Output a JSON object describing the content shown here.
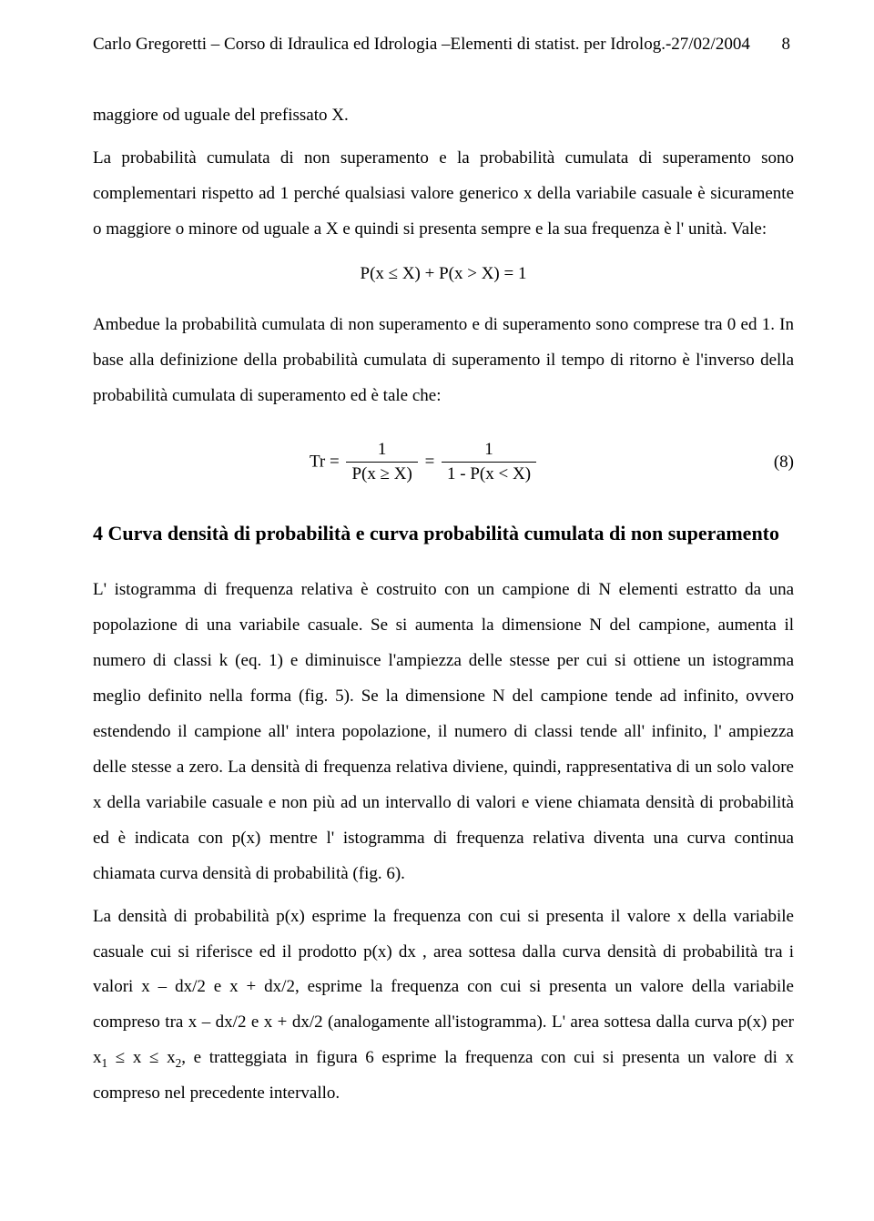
{
  "header": {
    "text": "Carlo Gregoretti – Corso di Idraulica ed Idrologia –Elementi di statist. per Idrolog.-27/02/2004",
    "page_number": "8"
  },
  "para1": "maggiore od uguale del prefissato X.",
  "para2": "La probabilità cumulata di non superamento e la probabilità cumulata di superamento sono complementari rispetto ad 1 perché qualsiasi valore generico x della variabile casuale è sicuramente o maggiore o minore od uguale a X e quindi si presenta sempre e la sua frequenza è l' unità. Vale:",
  "eq1": "P(x ≤ X) + P(x > X) = 1",
  "para3": "Ambedue la probabilità cumulata di non superamento e di superamento sono comprese tra  0 ed 1. In base alla definizione della probabilità cumulata di superamento il tempo di ritorno è l'inverso della probabilità cumulata di superamento ed è tale che:",
  "eq2": {
    "lhs": "Tr =",
    "frac1_num": "1",
    "frac1_den": "P(x ≥ X)",
    "mid": "=",
    "frac2_num": "1",
    "frac2_den": "1 - P(x < X)",
    "label": "(8)"
  },
  "section_title": "4 Curva densità di probabilità e curva probabilità cumulata di non superamento",
  "para4_pre": "L' istogramma di frequenza relativa è costruito con un campione di N elementi estratto da una popolazione di una variabile casuale. Se si aumenta la dimensione N del campione, aumenta il numero di classi k (eq. 1) e diminuisce l'ampiezza delle stesse per cui si ottiene un istogramma meglio definito nella forma (fig. 5). Se la dimensione N del campione tende ad infinito, ovvero estendendo il campione all' intera popolazione, il numero di classi tende all' infinito, l' ampiezza delle stesse a zero. La densità di frequenza relativa diviene, quindi, rappresentativa di un solo valore x della variabile casuale e non più ad un intervallo di valori e viene chiamata densità di probabilità ed è indicata con p(x) mentre l' istogramma di frequenza relativa diventa una curva continua chiamata curva densità di probabilità (fig. 6).",
  "para5_pre": "La densità di probabilità p(x) esprime la frequenza con cui si presenta il valore x della variabile casuale cui si riferisce ed il prodotto p(x) dx , area sottesa dalla curva densità di probabilità tra i valori x – dx/2 e x + dx/2, esprime la frequenza con cui si presenta un valore della variabile compreso tra x – dx/2 e x + dx/2 (analogamente all'istogramma). L' area sottesa dalla curva p(x) per x",
  "para5_sub1": "1",
  "para5_mid1": " ≤ x ≤ x",
  "para5_sub2": "2",
  "para5_post": ", e tratteggiata in figura 6 esprime la frequenza con cui si presenta un valore di x compreso nel precedente intervallo."
}
